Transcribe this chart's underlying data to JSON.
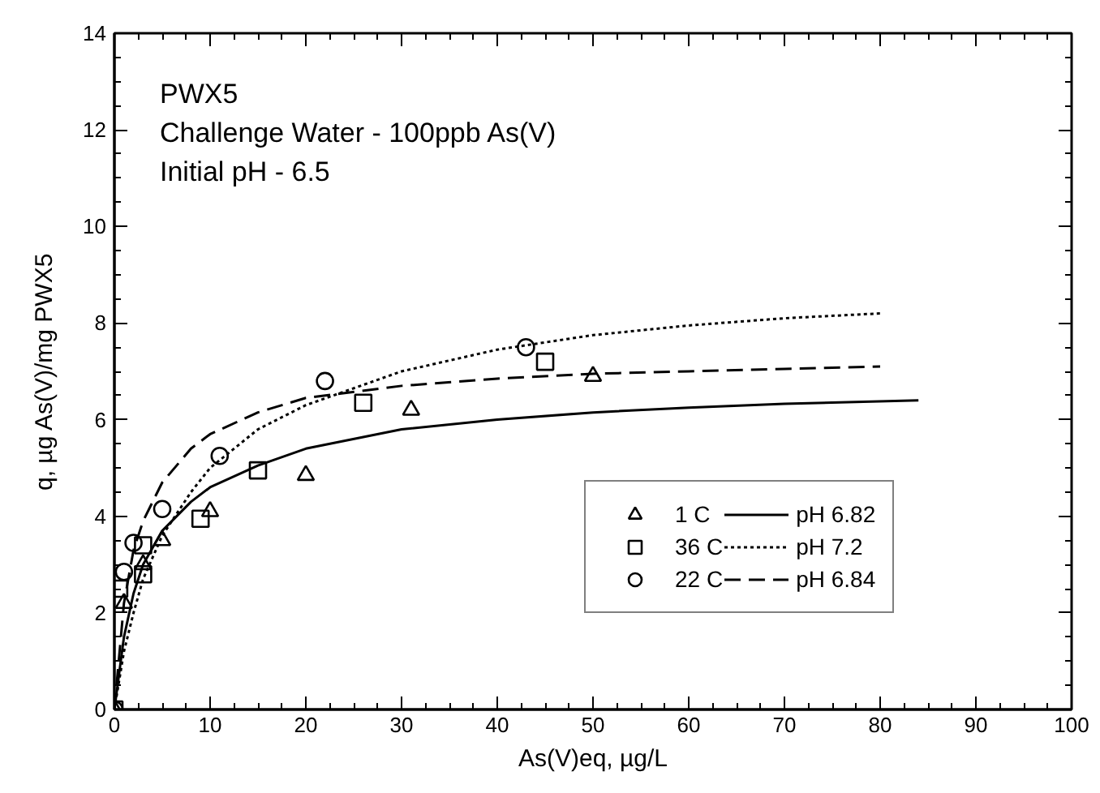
{
  "chart_data": {
    "type": "scatter",
    "title": "PWX5",
    "subtitle": "Challenge Water - 100ppb As(V)",
    "annotations": [
      "Initial pH - 6.5"
    ],
    "xlabel": "As(V)eq, µg/L",
    "ylabel": "q, µg As(V)/mg PWX5",
    "xlim": [
      0,
      100
    ],
    "xticks": [
      0,
      10,
      20,
      30,
      40,
      50,
      60,
      70,
      80,
      90,
      100
    ],
    "ylim": [
      0,
      14
    ],
    "yticks": [
      0,
      2,
      4,
      6,
      8,
      10,
      12,
      14
    ],
    "grid": false,
    "legend": "right",
    "series": [
      {
        "name": "1 C",
        "marker": "triangle",
        "color": "#000000",
        "x": [
          0,
          1,
          3,
          5,
          10,
          20,
          31,
          50
        ],
        "values": [
          0,
          2.2,
          3.0,
          3.5,
          4.1,
          4.85,
          6.2,
          6.9
        ]
      },
      {
        "name": "pH 6.82",
        "type": "line",
        "line_style": "solid",
        "color": "#000000",
        "x": [
          0,
          1,
          2,
          3,
          5,
          8,
          10,
          15,
          20,
          30,
          40,
          50,
          60,
          70,
          84
        ],
        "values": [
          0,
          1.5,
          2.4,
          3.0,
          3.7,
          4.3,
          4.6,
          5.05,
          5.4,
          5.8,
          6.0,
          6.15,
          6.25,
          6.33,
          6.4
        ]
      },
      {
        "name": "36 C",
        "marker": "square",
        "color": "#000000",
        "x": [
          0,
          0.5,
          3,
          3,
          9,
          15,
          26,
          45
        ],
        "values": [
          0,
          2.5,
          2.8,
          3.4,
          3.95,
          4.95,
          6.35,
          7.2
        ]
      },
      {
        "name": "pH 7.2",
        "type": "line",
        "line_style": "dotted",
        "color": "#000000",
        "x": [
          0,
          1,
          2,
          3,
          5,
          8,
          10,
          15,
          20,
          30,
          40,
          50,
          60,
          70,
          80
        ],
        "values": [
          0,
          1.2,
          2.0,
          2.7,
          3.6,
          4.5,
          5.0,
          5.8,
          6.3,
          7.0,
          7.45,
          7.75,
          7.95,
          8.1,
          8.2
        ]
      },
      {
        "name": "22 C",
        "marker": "circle",
        "color": "#000000",
        "x": [
          0,
          1,
          2,
          5,
          11,
          22,
          43
        ],
        "values": [
          0,
          2.85,
          3.45,
          4.15,
          5.25,
          6.8,
          7.5
        ]
      },
      {
        "name": "pH 6.84",
        "type": "line",
        "line_style": "dashed",
        "color": "#000000",
        "x": [
          0,
          1,
          2,
          3,
          5,
          8,
          10,
          15,
          20,
          30,
          40,
          50,
          60,
          70,
          80
        ],
        "values": [
          0,
          2.2,
          3.3,
          3.9,
          4.7,
          5.4,
          5.7,
          6.15,
          6.45,
          6.7,
          6.85,
          6.95,
          7.0,
          7.05,
          7.1
        ]
      }
    ]
  }
}
